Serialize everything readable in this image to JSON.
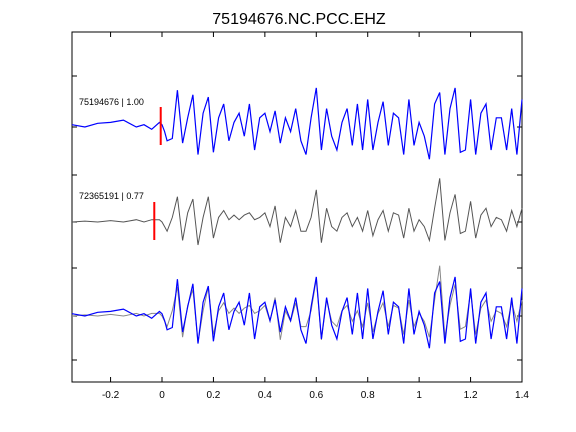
{
  "chart_data": {
    "type": "line",
    "title": "75194676.NC.PCC.EHZ",
    "xlabel": "",
    "ylabel": "",
    "xlim": [
      -0.35,
      1.4
    ],
    "xticks": [
      -0.2,
      0,
      0.2,
      0.4,
      0.6,
      0.8,
      1,
      1.2,
      1.4
    ],
    "xtick_labels": [
      "-0.2",
      "0",
      "0.2",
      "0.4",
      "0.6",
      "0.8",
      "1",
      "1.2",
      "1.4"
    ],
    "grid": false,
    "colors": {
      "blue": "#0000ff",
      "gray": "#555555",
      "overlay_gray": "#888888",
      "pick": "#ff0000",
      "axis": "#000000"
    },
    "traces": [
      {
        "label": "75194676 | 1.00",
        "color": "#0000ff",
        "pick_time": -0.005,
        "x": [
          -0.35,
          -0.3,
          -0.25,
          -0.2,
          -0.15,
          -0.1,
          -0.07,
          -0.04,
          -0.01,
          0.0,
          0.01,
          0.02,
          0.04,
          0.06,
          0.08,
          0.1,
          0.12,
          0.14,
          0.16,
          0.18,
          0.2,
          0.22,
          0.24,
          0.26,
          0.28,
          0.3,
          0.32,
          0.34,
          0.36,
          0.38,
          0.4,
          0.42,
          0.44,
          0.46,
          0.48,
          0.5,
          0.52,
          0.54,
          0.56,
          0.58,
          0.6,
          0.62,
          0.64,
          0.66,
          0.68,
          0.7,
          0.72,
          0.74,
          0.76,
          0.78,
          0.8,
          0.82,
          0.84,
          0.86,
          0.88,
          0.9,
          0.92,
          0.94,
          0.96,
          0.98,
          1.0,
          1.02,
          1.04,
          1.06,
          1.08,
          1.1,
          1.12,
          1.14,
          1.16,
          1.18,
          1.2,
          1.22,
          1.24,
          1.26,
          1.28,
          1.3,
          1.32,
          1.34,
          1.36,
          1.38,
          1.4
        ],
        "y": [
          0.05,
          0.0,
          0.08,
          0.1,
          0.15,
          0.0,
          0.05,
          -0.05,
          0.1,
          0.05,
          -0.1,
          -0.3,
          -0.25,
          0.8,
          -0.35,
          0.2,
          0.7,
          -0.6,
          0.3,
          0.65,
          -0.55,
          0.2,
          0.5,
          -0.3,
          0.1,
          0.3,
          -0.2,
          0.5,
          -0.5,
          0.2,
          0.3,
          -0.1,
          0.35,
          -0.35,
          0.2,
          -0.1,
          0.4,
          -0.3,
          -0.6,
          0.2,
          0.85,
          -0.5,
          0.4,
          -0.2,
          -0.5,
          0.1,
          0.4,
          -0.4,
          0.5,
          -0.5,
          0.6,
          -0.5,
          0.1,
          0.55,
          -0.4,
          0.3,
          0.2,
          -0.6,
          0.6,
          -0.4,
          0.1,
          -0.2,
          -0.7,
          0.5,
          0.75,
          -0.6,
          0.4,
          0.85,
          -0.55,
          -0.5,
          0.6,
          -0.6,
          0.3,
          0.5,
          -0.5,
          0.2,
          0.2,
          -0.5,
          0.4,
          -0.6,
          0.6
        ]
      },
      {
        "label": "72365191 | 0.77",
        "color": "#555555",
        "pick_time": -0.03,
        "x": [
          -0.35,
          -0.3,
          -0.25,
          -0.2,
          -0.15,
          -0.1,
          -0.07,
          -0.04,
          -0.01,
          0.0,
          0.01,
          0.02,
          0.04,
          0.06,
          0.08,
          0.1,
          0.12,
          0.14,
          0.16,
          0.18,
          0.2,
          0.22,
          0.24,
          0.26,
          0.28,
          0.3,
          0.32,
          0.34,
          0.36,
          0.38,
          0.4,
          0.42,
          0.44,
          0.46,
          0.48,
          0.5,
          0.52,
          0.54,
          0.56,
          0.58,
          0.6,
          0.62,
          0.64,
          0.66,
          0.68,
          0.7,
          0.72,
          0.74,
          0.76,
          0.78,
          0.8,
          0.82,
          0.84,
          0.86,
          0.88,
          0.9,
          0.92,
          0.94,
          0.96,
          0.98,
          1.0,
          1.02,
          1.04,
          1.06,
          1.08,
          1.1,
          1.12,
          1.14,
          1.16,
          1.18,
          1.2,
          1.22,
          1.24,
          1.26,
          1.28,
          1.3,
          1.32,
          1.34,
          1.36,
          1.38,
          1.4
        ],
        "y": [
          0.0,
          0.02,
          0.0,
          0.03,
          0.0,
          0.05,
          0.0,
          0.05,
          0.05,
          0.0,
          -0.1,
          -0.2,
          0.1,
          0.55,
          -0.4,
          0.2,
          0.5,
          -0.5,
          0.1,
          0.55,
          -0.35,
          0.1,
          0.25,
          0.05,
          0.15,
          0.05,
          0.15,
          0.2,
          0.05,
          0.1,
          0.2,
          -0.1,
          0.35,
          -0.45,
          0.1,
          -0.1,
          0.25,
          -0.2,
          -0.2,
          0.1,
          0.7,
          -0.45,
          0.3,
          -0.1,
          -0.2,
          0.1,
          0.2,
          -0.1,
          0.1,
          -0.2,
          0.25,
          -0.3,
          0.05,
          0.25,
          -0.2,
          0.2,
          0.15,
          -0.35,
          0.3,
          -0.2,
          0.05,
          -0.1,
          -0.4,
          0.3,
          0.95,
          -0.4,
          0.2,
          0.6,
          -0.25,
          -0.2,
          0.45,
          -0.35,
          0.15,
          0.3,
          -0.1,
          0.1,
          0.05,
          -0.2,
          0.25,
          -0.1,
          0.3
        ]
      }
    ]
  }
}
